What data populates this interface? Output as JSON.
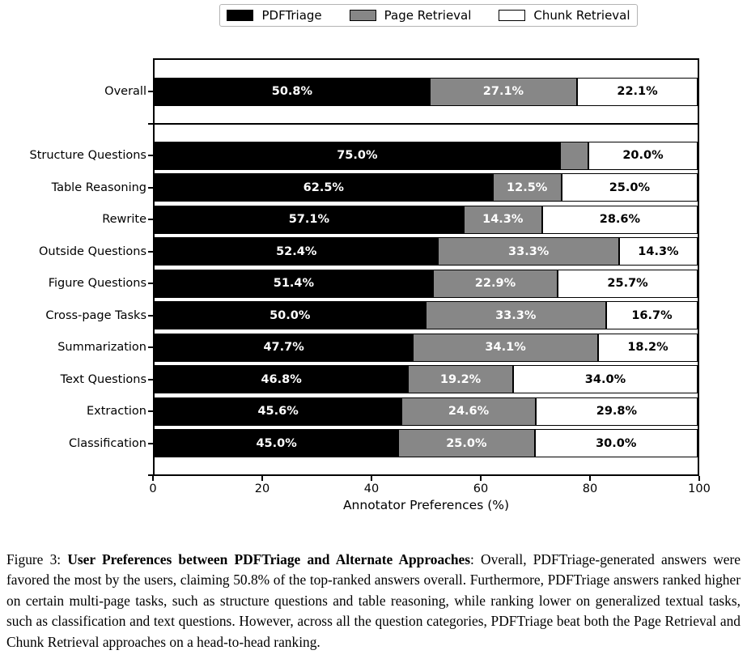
{
  "legend": {
    "items": [
      {
        "label": "PDFTriage",
        "color": "#000000"
      },
      {
        "label": "Page Retrieval",
        "color": "#878787"
      },
      {
        "label": "Chunk Retrieval",
        "color": "#ffffff"
      }
    ]
  },
  "chart_data": {
    "type": "bar",
    "orientation": "horizontal",
    "stacked": true,
    "title": "",
    "xlabel": "Annotator Preferences (%)",
    "ylabel": "",
    "xlim": [
      0,
      100
    ],
    "xticks": [
      0,
      20,
      40,
      60,
      80,
      100
    ],
    "grid": false,
    "legend_position": "top center",
    "separator_after_category": "Overall",
    "value_label_format": "{value}%",
    "min_value_for_label": 6,
    "categories": [
      "Overall",
      "Structure Questions",
      "Table Reasoning",
      "Rewrite",
      "Outside Questions",
      "Figure Questions",
      "Cross-page Tasks",
      "Summarization",
      "Text Questions",
      "Extraction",
      "Classification"
    ],
    "series": [
      {
        "name": "PDFTriage",
        "color": "#000000",
        "text_color": "#ffffff",
        "values": [
          50.8,
          75.0,
          62.5,
          57.1,
          52.4,
          51.4,
          50.0,
          47.7,
          46.8,
          45.6,
          45.0
        ]
      },
      {
        "name": "Page Retrieval",
        "color": "#878787",
        "text_color": "#ffffff",
        "values": [
          27.1,
          5.0,
          12.5,
          14.3,
          33.3,
          22.9,
          33.3,
          34.1,
          19.2,
          24.6,
          25.0
        ]
      },
      {
        "name": "Chunk Retrieval",
        "color": "#ffffff",
        "text_color": "#000000",
        "values": [
          22.1,
          20.0,
          25.0,
          28.6,
          14.3,
          25.7,
          16.7,
          18.2,
          34.0,
          29.8,
          30.0
        ]
      }
    ]
  },
  "caption": {
    "prefix": "Figure 3: ",
    "bold": "User Preferences between PDFTriage and Alternate Approaches",
    "rest": ": Overall, PDFTriage-generated answers were favored the most by the users, claiming 50.8% of the top-ranked answers overall. Furthermore, PDFTriage answers ranked higher on certain multi-page tasks, such as structure questions and table reasoning, while ranking lower on generalized textual tasks, such as classification and text questions. However, across all the question categories, PDFTriage beat both the Page Retrieval and Chunk Retrieval approaches on a head-to-head ranking."
  }
}
